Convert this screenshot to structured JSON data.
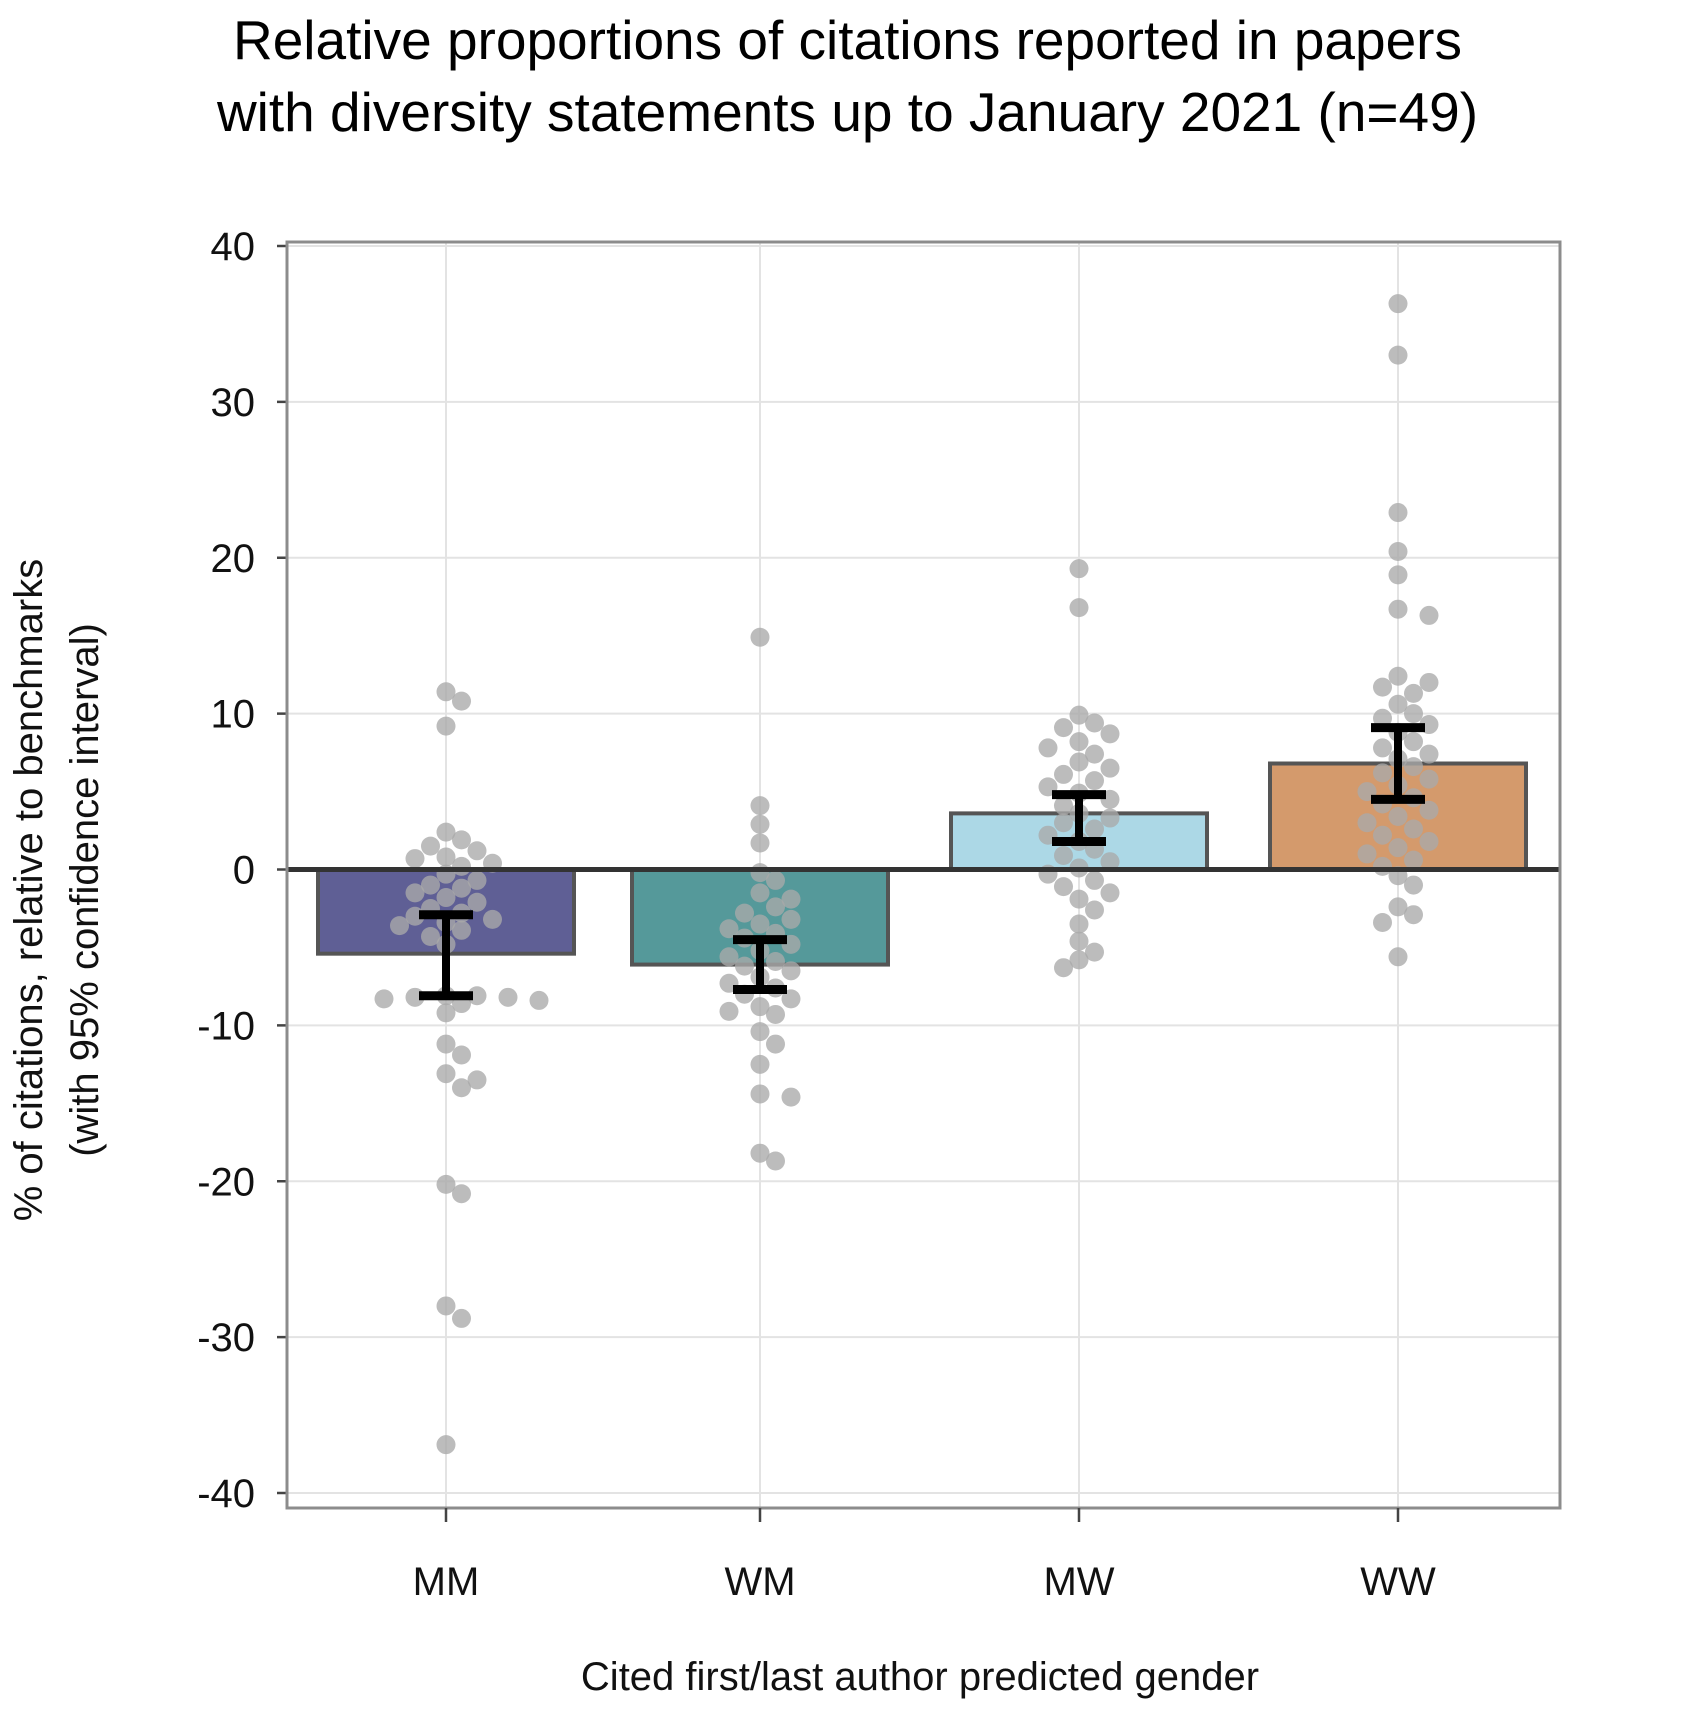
{
  "chart_data": {
    "type": "bar",
    "title_lines": [
      "Relative proportions of citations reported in papers",
      "with diversity statements up to January 2021 (n=49)"
    ],
    "xlabel": "Cited first/last author predicted gender",
    "ylabel_lines": [
      "% of citations, relative to benchmarks",
      "(with 95% confidence interval)"
    ],
    "ylim": [
      -40,
      40
    ],
    "yticks": [
      40,
      30,
      20,
      10,
      0,
      -10,
      -20,
      -30,
      -40
    ],
    "ytick_labels": [
      "40",
      "30",
      "20",
      "10",
      "0",
      "-10",
      "-20",
      "-30",
      "-40"
    ],
    "categories": [
      "MM",
      "WM",
      "MW",
      "WW"
    ],
    "values": [
      -5.4,
      -6.1,
      3.6,
      6.8
    ],
    "ci_low": [
      -8.1,
      -7.7,
      1.8,
      4.5
    ],
    "ci_high": [
      -2.9,
      -4.5,
      4.8,
      9.1
    ],
    "colors": [
      "#5f5f95",
      "#55999a",
      "#acd8e6",
      "#d49a6c"
    ],
    "point_color": "#a9a9a9",
    "grid": true,
    "legend": "none",
    "points": [
      [
        11.4,
        10.8,
        9.2,
        2.4,
        1.9,
        1.5,
        1.2,
        0.8,
        0.7,
        0.4,
        0.2,
        -0.3,
        -0.7,
        -1.0,
        -1.2,
        -1.5,
        -1.8,
        -2.1,
        -2.5,
        -2.8,
        -3.0,
        -3.2,
        -3.4,
        -3.6,
        -3.9,
        -4.3,
        -4.8,
        -8.1,
        -8.1,
        -8.2,
        -8.2,
        -8.3,
        -8.4,
        -8.6,
        -9.2,
        -11.2,
        -11.9,
        -13.1,
        -13.5,
        -14.0,
        -20.2,
        -20.8,
        -28.0,
        -28.8,
        -36.9
      ],
      [
        14.9,
        4.1,
        2.9,
        1.7,
        -0.2,
        -0.7,
        -1.5,
        -1.9,
        -2.4,
        -2.8,
        -3.2,
        -3.5,
        -3.8,
        -4.1,
        -4.4,
        -4.8,
        -5.2,
        -5.6,
        -5.9,
        -6.2,
        -6.5,
        -6.9,
        -7.3,
        -7.6,
        -8.0,
        -8.3,
        -8.8,
        -9.1,
        -9.3,
        -10.4,
        -11.2,
        -12.5,
        -14.4,
        -14.6,
        -18.2,
        -18.7
      ],
      [
        19.3,
        16.8,
        9.9,
        9.4,
        9.1,
        8.7,
        8.2,
        7.8,
        7.4,
        6.9,
        6.5,
        6.1,
        5.7,
        5.3,
        4.9,
        4.5,
        4.1,
        3.6,
        3.3,
        3.0,
        2.6,
        2.2,
        1.8,
        1.3,
        0.9,
        0.5,
        0.1,
        -0.3,
        -0.7,
        -1.1,
        -1.5,
        -1.9,
        -2.6,
        -3.5,
        -4.6,
        -5.3,
        -5.8,
        -6.3
      ],
      [
        36.3,
        33.0,
        22.9,
        20.4,
        18.9,
        16.7,
        16.3,
        12.4,
        12.0,
        11.7,
        11.3,
        10.6,
        10.0,
        9.7,
        9.3,
        8.8,
        8.2,
        7.8,
        7.4,
        7.1,
        6.6,
        6.2,
        5.8,
        5.4,
        5.0,
        4.6,
        4.2,
        3.8,
        3.4,
        3.0,
        2.6,
        2.2,
        1.8,
        1.4,
        1.0,
        0.6,
        0.2,
        -0.4,
        -1.0,
        -2.4,
        -2.9,
        -3.4,
        -5.6
      ]
    ]
  }
}
